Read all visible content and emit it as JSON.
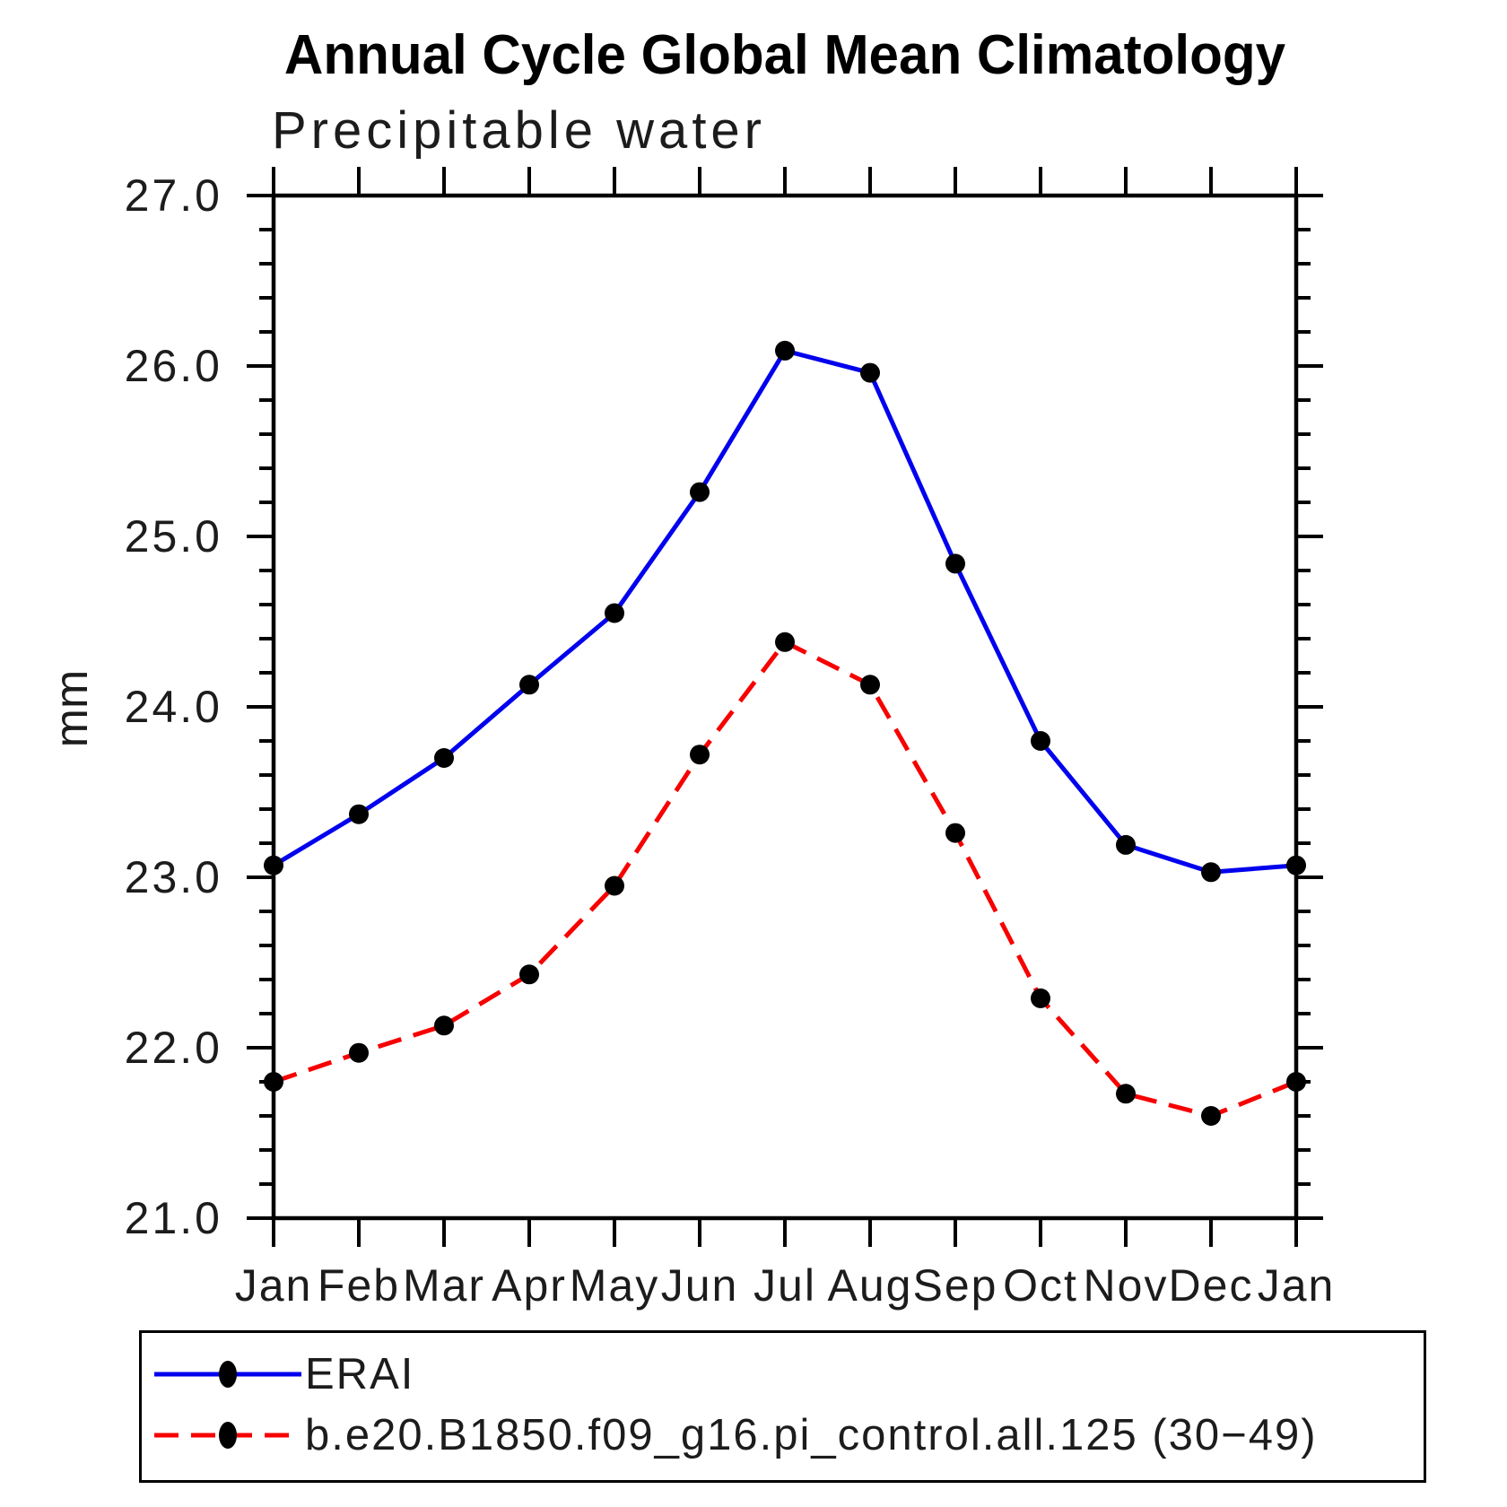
{
  "title": "Annual Cycle Global Mean Climatology",
  "subtitle": "Precipitable water",
  "ylabel": "mm",
  "chart_data": {
    "type": "line",
    "categories": [
      "Jan",
      "Feb",
      "Mar",
      "Apr",
      "May",
      "Jun",
      "Jul",
      "Aug",
      "Sep",
      "Oct",
      "Nov",
      "Dec",
      "Jan"
    ],
    "series": [
      {
        "name": "ERAI",
        "color": "#0000ee",
        "line_style": "solid",
        "dash": "",
        "marker": "filled-circle",
        "marker_color": "#000000",
        "values": [
          23.07,
          23.37,
          23.7,
          24.13,
          24.55,
          25.26,
          26.09,
          25.96,
          24.84,
          23.8,
          23.19,
          23.03,
          23.07
        ]
      },
      {
        "name": "b.e20.B1850.f09_g16.pi_control.all.125 (30−49)",
        "color": "#f70000",
        "line_style": "dashed",
        "dash": "27 14",
        "marker": "filled-circle",
        "marker_color": "#000000",
        "values": [
          21.8,
          21.97,
          22.13,
          22.43,
          22.95,
          23.72,
          24.38,
          24.13,
          23.26,
          22.29,
          21.73,
          21.6,
          21.8
        ]
      }
    ],
    "xlabel": "",
    "ylabel": "mm",
    "ylim": [
      21.0,
      27.0
    ],
    "y_major_step": 1.0,
    "y_minor_step": 0.2,
    "y_tick_labels": [
      "21.0",
      "22.0",
      "23.0",
      "24.0",
      "25.0",
      "26.0",
      "27.0"
    ],
    "grid": false,
    "legend_position": "bottom"
  }
}
